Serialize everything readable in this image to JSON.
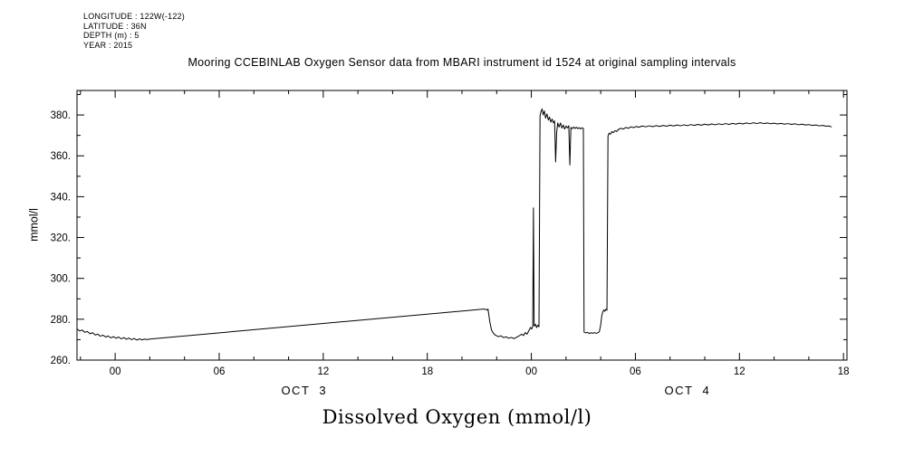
{
  "metadata": {
    "longitude": "LONGITUDE : 122W(-122)",
    "latitude": "LATITUDE : 36N",
    "depth": "DEPTH (m) : 5",
    "year": "YEAR : 2015"
  },
  "chart_data": {
    "type": "line",
    "title": "Mooring CCEBINLAB Oxygen Sensor data from MBARI instrument id 1524 at original sampling intervals",
    "bottom_title": "Dissolved Oxygen (mmol/l)",
    "ylabel": "mmol/l",
    "background": "#ffffff",
    "line_color": "#000000",
    "grid": false,
    "x_unit": "hours since Oct 3 00:00",
    "xlim": [
      -2.2,
      42.2
    ],
    "ylim": [
      260,
      392
    ],
    "x_major_ticks": [
      {
        "hour": 0,
        "label": "00"
      },
      {
        "hour": 6,
        "label": "06"
      },
      {
        "hour": 12,
        "label": "12"
      },
      {
        "hour": 18,
        "label": "18"
      },
      {
        "hour": 24,
        "label": "00"
      },
      {
        "hour": 30,
        "label": "06"
      },
      {
        "hour": 36,
        "label": "12"
      },
      {
        "hour": 42,
        "label": "18"
      }
    ],
    "x_minor_step_hours": 2,
    "y_major_ticks": [
      {
        "value": 260,
        "label": "260."
      },
      {
        "value": 280,
        "label": "280."
      },
      {
        "value": 300,
        "label": "300."
      },
      {
        "value": 320,
        "label": "320."
      },
      {
        "value": 340,
        "label": "340."
      },
      {
        "value": 360,
        "label": "360."
      },
      {
        "value": 380,
        "label": "380."
      }
    ],
    "y_minor_step": 10,
    "x_date_labels": [
      {
        "hour": 10.9,
        "label": "OCT  3"
      },
      {
        "hour": 33.0,
        "label": "OCT  4"
      }
    ],
    "series": [
      {
        "name": "dissolved_oxygen_mmol_per_l",
        "color": "#000000",
        "points": [
          [
            -2.2,
            275.3
          ],
          [
            -2.05,
            274.3
          ],
          [
            -1.9,
            274.7
          ],
          [
            -1.75,
            273.6
          ],
          [
            -1.6,
            274.0
          ],
          [
            -1.45,
            272.9
          ],
          [
            -1.3,
            273.4
          ],
          [
            -1.15,
            272.3
          ],
          [
            -1.0,
            272.7
          ],
          [
            -0.85,
            271.7
          ],
          [
            -0.7,
            272.2
          ],
          [
            -0.55,
            271.3
          ],
          [
            -0.4,
            271.8
          ],
          [
            -0.25,
            270.9
          ],
          [
            -0.1,
            271.5
          ],
          [
            0.05,
            270.7
          ],
          [
            0.2,
            271.3
          ],
          [
            0.35,
            270.4
          ],
          [
            0.5,
            271.0
          ],
          [
            0.65,
            270.2
          ],
          [
            0.8,
            270.8
          ],
          [
            0.95,
            270.0
          ],
          [
            1.1,
            270.6
          ],
          [
            1.25,
            269.8
          ],
          [
            1.4,
            270.4
          ],
          [
            1.55,
            269.9
          ],
          [
            1.7,
            270.3
          ],
          [
            1.85,
            270.0
          ],
          [
            2.0,
            270.3
          ],
          [
            21.3,
            285.0
          ],
          [
            21.45,
            284.5
          ],
          [
            21.5,
            285.0
          ],
          [
            21.6,
            279.0
          ],
          [
            21.7,
            274.8
          ],
          [
            21.82,
            273.0
          ],
          [
            21.95,
            272.1
          ],
          [
            22.1,
            271.5
          ],
          [
            22.25,
            271.9
          ],
          [
            22.4,
            271.0
          ],
          [
            22.55,
            271.4
          ],
          [
            22.7,
            270.7
          ],
          [
            22.85,
            271.1
          ],
          [
            23.0,
            270.5
          ],
          [
            23.15,
            271.2
          ],
          [
            23.3,
            271.9
          ],
          [
            23.45,
            272.7
          ],
          [
            23.55,
            272.0
          ],
          [
            23.65,
            273.5
          ],
          [
            23.75,
            272.7
          ],
          [
            23.85,
            274.3
          ],
          [
            23.95,
            276.0
          ],
          [
            24.02,
            275.2
          ],
          [
            24.08,
            276.6
          ],
          [
            24.12,
            334.5
          ],
          [
            24.16,
            276.6
          ],
          [
            24.24,
            277.6
          ],
          [
            24.3,
            275.9
          ],
          [
            24.37,
            277.1
          ],
          [
            24.44,
            276.3
          ],
          [
            24.5,
            379.5
          ],
          [
            24.55,
            381.5
          ],
          [
            24.62,
            383.0
          ],
          [
            24.68,
            380.0
          ],
          [
            24.75,
            382.0
          ],
          [
            24.82,
            378.5
          ],
          [
            24.9,
            380.5
          ],
          [
            24.98,
            377.5
          ],
          [
            25.05,
            379.0
          ],
          [
            25.12,
            376.5
          ],
          [
            25.2,
            378.0
          ],
          [
            25.28,
            376.1
          ],
          [
            25.34,
            377.1
          ],
          [
            25.4,
            357.0
          ],
          [
            25.46,
            371.6
          ],
          [
            25.52,
            376.1
          ],
          [
            25.6,
            374.1
          ],
          [
            25.68,
            376.1
          ],
          [
            25.76,
            373.6
          ],
          [
            25.84,
            375.1
          ],
          [
            25.92,
            373.1
          ],
          [
            26.0,
            374.6
          ],
          [
            26.08,
            373.7
          ],
          [
            26.16,
            374.7
          ],
          [
            26.22,
            355.5
          ],
          [
            26.28,
            373.9
          ],
          [
            26.36,
            373.3
          ],
          [
            26.44,
            374.1
          ],
          [
            26.52,
            373.4
          ],
          [
            26.6,
            374.0
          ],
          [
            26.68,
            373.3
          ],
          [
            26.76,
            373.8
          ],
          [
            26.84,
            373.2
          ],
          [
            26.92,
            373.7
          ],
          [
            27.0,
            373.4
          ],
          [
            27.04,
            273.7
          ],
          [
            27.14,
            273.3
          ],
          [
            27.24,
            273.6
          ],
          [
            27.34,
            273.0
          ],
          [
            27.44,
            273.4
          ],
          [
            27.54,
            273.1
          ],
          [
            27.64,
            273.5
          ],
          [
            27.74,
            273.1
          ],
          [
            27.84,
            273.4
          ],
          [
            27.92,
            273.9
          ],
          [
            28.0,
            277.2
          ],
          [
            28.06,
            281.6
          ],
          [
            28.12,
            283.6
          ],
          [
            28.18,
            284.6
          ],
          [
            28.24,
            283.9
          ],
          [
            28.3,
            284.9
          ],
          [
            28.36,
            284.4
          ],
          [
            28.42,
            369.6
          ],
          [
            28.48,
            371.1
          ],
          [
            28.56,
            370.6
          ],
          [
            28.64,
            371.9
          ],
          [
            28.72,
            371.3
          ],
          [
            28.82,
            372.3
          ],
          [
            28.92,
            371.9
          ],
          [
            29.02,
            372.9
          ],
          [
            29.16,
            373.5
          ],
          [
            29.3,
            373.1
          ],
          [
            29.45,
            373.9
          ],
          [
            29.6,
            373.5
          ],
          [
            29.75,
            374.2
          ],
          [
            29.9,
            373.8
          ],
          [
            30.05,
            374.4
          ],
          [
            30.2,
            374.0
          ],
          [
            30.4,
            374.6
          ],
          [
            30.6,
            374.2
          ],
          [
            30.8,
            374.7
          ],
          [
            31.0,
            374.3
          ],
          [
            31.2,
            374.8
          ],
          [
            31.4,
            374.4
          ],
          [
            31.6,
            374.9
          ],
          [
            31.8,
            374.5
          ],
          [
            32.0,
            375.0
          ],
          [
            32.2,
            374.6
          ],
          [
            32.4,
            375.1
          ],
          [
            32.6,
            374.7
          ],
          [
            32.8,
            375.2
          ],
          [
            33.0,
            374.8
          ],
          [
            33.2,
            375.3
          ],
          [
            33.4,
            374.9
          ],
          [
            33.6,
            375.4
          ],
          [
            33.8,
            375.0
          ],
          [
            34.0,
            375.5
          ],
          [
            34.2,
            375.1
          ],
          [
            34.4,
            375.6
          ],
          [
            34.6,
            375.2
          ],
          [
            34.8,
            375.7
          ],
          [
            35.0,
            375.3
          ],
          [
            35.2,
            375.8
          ],
          [
            35.4,
            375.4
          ],
          [
            35.6,
            375.9
          ],
          [
            35.8,
            375.5
          ],
          [
            36.0,
            376.0
          ],
          [
            36.2,
            375.6
          ],
          [
            36.4,
            376.1
          ],
          [
            36.6,
            375.7
          ],
          [
            36.8,
            376.2
          ],
          [
            37.0,
            375.8
          ],
          [
            37.2,
            376.2
          ],
          [
            37.4,
            375.8
          ],
          [
            37.6,
            376.1
          ],
          [
            37.8,
            375.7
          ],
          [
            38.0,
            376.0
          ],
          [
            38.2,
            375.6
          ],
          [
            38.4,
            375.9
          ],
          [
            38.6,
            375.5
          ],
          [
            38.8,
            375.8
          ],
          [
            39.0,
            375.4
          ],
          [
            39.2,
            375.7
          ],
          [
            39.4,
            375.2
          ],
          [
            39.6,
            375.5
          ],
          [
            39.8,
            375.1
          ],
          [
            40.0,
            375.3
          ],
          [
            40.2,
            374.9
          ],
          [
            40.4,
            375.1
          ],
          [
            40.6,
            374.7
          ],
          [
            40.8,
            374.9
          ],
          [
            41.0,
            374.5
          ],
          [
            41.15,
            374.6
          ],
          [
            41.3,
            374.2
          ]
        ]
      }
    ]
  }
}
